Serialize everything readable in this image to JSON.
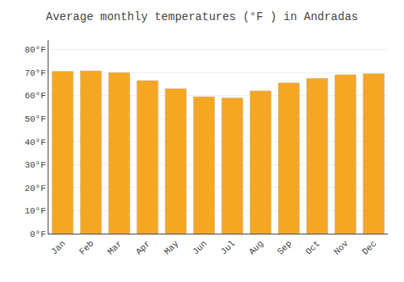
{
  "chart_data": {
    "type": "bar",
    "title": "Average monthly temperatures (°F ) in Andradas",
    "categories": [
      "Jan",
      "Feb",
      "Mar",
      "Apr",
      "May",
      "Jun",
      "Jul",
      "Aug",
      "Sep",
      "Oct",
      "Nov",
      "Dec"
    ],
    "values": [
      70.5,
      70.7,
      70.0,
      66.5,
      63.0,
      59.5,
      59.0,
      62.0,
      65.5,
      67.5,
      69.0,
      69.5
    ],
    "color": "#F5A623",
    "ylim": [
      0,
      84
    ],
    "yticks": [
      {
        "value": 0,
        "label": "0°F"
      },
      {
        "value": 10,
        "label": "10°F"
      },
      {
        "value": 20,
        "label": "20°F"
      },
      {
        "value": 30,
        "label": "30°F"
      },
      {
        "value": 40,
        "label": "40°F"
      },
      {
        "value": 50,
        "label": "50°F"
      },
      {
        "value": 60,
        "label": "60°F"
      },
      {
        "value": 70,
        "label": "70°F"
      },
      {
        "value": 80,
        "label": "80°F"
      }
    ],
    "grid": true
  }
}
